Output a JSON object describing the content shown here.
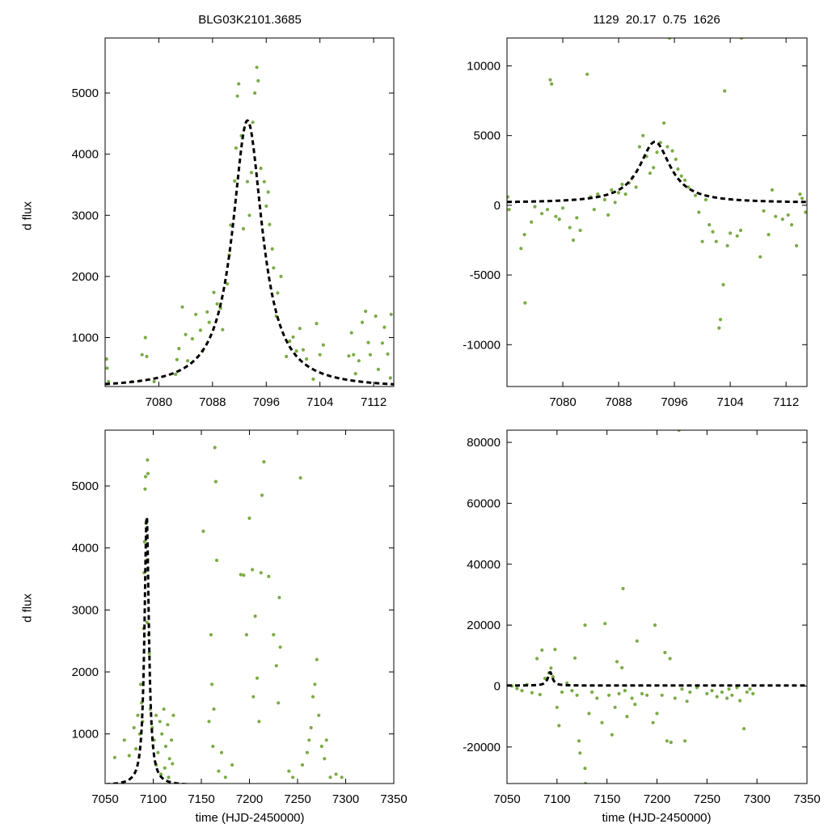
{
  "titles": {
    "left": "BLG03K2101.3685",
    "right": "1129  20.17  0.75  1626"
  },
  "axis_labels": {
    "y": "d flux",
    "x": "time (HJD-2450000)"
  },
  "colors": {
    "points": "#7aab45",
    "model": "#000000",
    "frame": "#000000"
  },
  "chart_data": [
    {
      "id": "top-left",
      "type": "scatter",
      "xlim": [
        7072,
        7115
      ],
      "ylim": [
        200,
        5900
      ],
      "xticks": [
        7080,
        7088,
        7096,
        7104,
        7112
      ],
      "yticks": [
        1000,
        2000,
        3000,
        4000,
        5000
      ],
      "xlabel": "",
      "ylabel": "d flux",
      "model": {
        "name": "model",
        "style": "dashed",
        "t0": 7093.2,
        "peak": 4550,
        "width": 2.7,
        "base": 170
      },
      "points": [
        [
          7072.2,
          650
        ],
        [
          7072.3,
          500
        ],
        [
          7072.5,
          280
        ],
        [
          7076,
          280
        ],
        [
          7077.5,
          720
        ],
        [
          7078,
          1000
        ],
        [
          7078.2,
          690
        ],
        [
          7079.3,
          280
        ],
        [
          7082.5,
          400
        ],
        [
          7082.7,
          640
        ],
        [
          7083,
          820
        ],
        [
          7083.5,
          1500
        ],
        [
          7084,
          1050
        ],
        [
          7084.3,
          620
        ],
        [
          7085,
          980
        ],
        [
          7085.5,
          1380
        ],
        [
          7086.2,
          1120
        ],
        [
          7086.5,
          780
        ],
        [
          7087.2,
          1420
        ],
        [
          7087.5,
          1250
        ],
        [
          7088.2,
          1740
        ],
        [
          7088.7,
          1550
        ],
        [
          7089.2,
          1480
        ],
        [
          7089.5,
          1130
        ],
        [
          7090.2,
          1880
        ],
        [
          7090.5,
          2350
        ],
        [
          7090.7,
          2840
        ],
        [
          7091.3,
          3560
        ],
        [
          7091.5,
          4100
        ],
        [
          7091.7,
          4950
        ],
        [
          7091.9,
          5150
        ],
        [
          7092.3,
          4300
        ],
        [
          7092.6,
          2780
        ],
        [
          7093.2,
          3550
        ],
        [
          7093.5,
          3000
        ],
        [
          7093.8,
          3700
        ],
        [
          7094.0,
          4520
        ],
        [
          7094.3,
          5000
        ],
        [
          7094.6,
          5420
        ],
        [
          7094.8,
          5200
        ],
        [
          7095.2,
          3770
        ],
        [
          7095.7,
          3550
        ],
        [
          7096.0,
          3150
        ],
        [
          7096.3,
          3380
        ],
        [
          7096.5,
          2850
        ],
        [
          7096.9,
          2450
        ],
        [
          7097.1,
          2140
        ],
        [
          7097.5,
          1350
        ],
        [
          7097.7,
          1730
        ],
        [
          7098.2,
          2000
        ],
        [
          7099,
          690
        ],
        [
          7099.5,
          940
        ],
        [
          7100,
          1010
        ],
        [
          7100.5,
          780
        ],
        [
          7101,
          1150
        ],
        [
          7101.5,
          800
        ],
        [
          7102,
          650
        ],
        [
          7103,
          320
        ],
        [
          7103.5,
          1230
        ],
        [
          7104,
          720
        ],
        [
          7104.5,
          880
        ],
        [
          7108.3,
          700
        ],
        [
          7108.7,
          1080
        ],
        [
          7109,
          720
        ],
        [
          7109.3,
          410
        ],
        [
          7109.8,
          620
        ],
        [
          7110.3,
          1250
        ],
        [
          7110.8,
          1430
        ],
        [
          7111.2,
          920
        ],
        [
          7111.5,
          720
        ],
        [
          7112.3,
          1350
        ],
        [
          7112.7,
          480
        ],
        [
          7113.3,
          910
        ],
        [
          7113.6,
          1170
        ],
        [
          7114.1,
          730
        ],
        [
          7114.5,
          340
        ],
        [
          7114.6,
          1380
        ]
      ]
    },
    {
      "id": "top-right",
      "type": "scatter",
      "xlim": [
        7072,
        7115
      ],
      "ylim": [
        -13000,
        12000
      ],
      "xticks": [
        7080,
        7088,
        7096,
        7104,
        7112
      ],
      "yticks": [
        -10000,
        -5000,
        0,
        5000,
        10000
      ],
      "xlabel": "",
      "ylabel": "",
      "model": {
        "name": "model",
        "style": "dashed",
        "t0": 7093.2,
        "peak": 4550,
        "width": 2.7,
        "base": 170
      },
      "points": [
        [
          7072.1,
          600
        ],
        [
          7072.3,
          -300
        ],
        [
          7074,
          -3100
        ],
        [
          7074.5,
          -2100
        ],
        [
          7074.6,
          -7000
        ],
        [
          7075.5,
          -1200
        ],
        [
          7076,
          -100
        ],
        [
          7077,
          -600
        ],
        [
          7077.8,
          -300
        ],
        [
          7078.2,
          9000
        ],
        [
          7078.4,
          8700
        ],
        [
          7079,
          -800
        ],
        [
          7079.5,
          -1000
        ],
        [
          7080,
          -200
        ],
        [
          7081,
          -1600
        ],
        [
          7081.5,
          -2500
        ],
        [
          7082,
          -900
        ],
        [
          7082.5,
          -1800
        ],
        [
          7083.5,
          9400
        ],
        [
          7084,
          600
        ],
        [
          7084.5,
          -300
        ],
        [
          7085,
          800
        ],
        [
          7086,
          400
        ],
        [
          7086.5,
          -700
        ],
        [
          7087,
          1100
        ],
        [
          7087.5,
          200
        ],
        [
          7088,
          900
        ],
        [
          7088.5,
          1500
        ],
        [
          7089,
          800
        ],
        [
          7089.5,
          1600
        ],
        [
          7090,
          2000
        ],
        [
          7090.5,
          1300
        ],
        [
          7091,
          4200
        ],
        [
          7091.5,
          5000
        ],
        [
          7092,
          3500
        ],
        [
          7092.5,
          2300
        ],
        [
          7093,
          2700
        ],
        [
          7093.5,
          3800
        ],
        [
          7094,
          4500
        ],
        [
          7094.5,
          5900
        ],
        [
          7095,
          4200
        ],
        [
          7095.3,
          12000
        ],
        [
          7095.7,
          3900
        ],
        [
          7096.2,
          3300
        ],
        [
          7096.5,
          2600
        ],
        [
          7097,
          2100
        ],
        [
          7097.5,
          1800
        ],
        [
          7098,
          1300
        ],
        [
          7099,
          700
        ],
        [
          7099.5,
          -500
        ],
        [
          7100,
          -2600
        ],
        [
          7100.5,
          400
        ],
        [
          7101,
          -1400
        ],
        [
          7101.5,
          -1900
        ],
        [
          7102,
          -2600
        ],
        [
          7102.4,
          -8800
        ],
        [
          7102.6,
          -8200
        ],
        [
          7103,
          -5700
        ],
        [
          7103.2,
          8200
        ],
        [
          7103.6,
          -2900
        ],
        [
          7104,
          -2000
        ],
        [
          7105,
          -2200
        ],
        [
          7105.5,
          -1800
        ],
        [
          7105.6,
          12000
        ],
        [
          7108.3,
          -3700
        ],
        [
          7108.8,
          -400
        ],
        [
          7109.5,
          -2100
        ],
        [
          7110,
          1100
        ],
        [
          7110.5,
          -800
        ],
        [
          7111.5,
          -1000
        ],
        [
          7112.3,
          -700
        ],
        [
          7112.8,
          -1400
        ],
        [
          7113.5,
          -2900
        ],
        [
          7114,
          800
        ],
        [
          7114.3,
          500
        ],
        [
          7114.8,
          -500
        ]
      ]
    },
    {
      "id": "bottom-left",
      "type": "scatter",
      "xlim": [
        7050,
        7350
      ],
      "ylim": [
        200,
        5900
      ],
      "xticks": [
        7050,
        7100,
        7150,
        7200,
        7250,
        7300,
        7350
      ],
      "yticks": [
        1000,
        2000,
        3000,
        4000,
        5000
      ],
      "xlabel": "time (HJD-2450000)",
      "ylabel": "d flux",
      "model": {
        "name": "model",
        "style": "dashed",
        "t0": 7093.2,
        "peak": 4550,
        "width": 2.7,
        "base": 170
      },
      "points": [
        [
          7060,
          620
        ],
        [
          7070,
          900
        ],
        [
          7075,
          650
        ],
        [
          7080,
          1100
        ],
        [
          7082,
          760
        ],
        [
          7084,
          1300
        ],
        [
          7086,
          1000
        ],
        [
          7087,
          1800
        ],
        [
          7088,
          1500
        ],
        [
          7089,
          1200
        ],
        [
          7090,
          2700
        ],
        [
          7090.5,
          3600
        ],
        [
          7091,
          4100
        ],
        [
          7091.5,
          4950
        ],
        [
          7092,
          5150
        ],
        [
          7092.5,
          4400
        ],
        [
          7093,
          3800
        ],
        [
          7093.5,
          2800
        ],
        [
          7094,
          5420
        ],
        [
          7094.5,
          5200
        ],
        [
          7095,
          2600
        ],
        [
          7096,
          2300
        ],
        [
          7097,
          1400
        ],
        [
          7099,
          1100
        ],
        [
          7101,
          900
        ],
        [
          7103,
          1300
        ],
        [
          7105,
          700
        ],
        [
          7107,
          1200
        ],
        [
          7109,
          1000
        ],
        [
          7111,
          1400
        ],
        [
          7113,
          800
        ],
        [
          7115,
          1150
        ],
        [
          7117,
          600
        ],
        [
          7119,
          900
        ],
        [
          7121,
          1300
        ],
        [
          7103,
          500
        ],
        [
          7108,
          350
        ],
        [
          7112,
          450
        ],
        [
          7116,
          300
        ],
        [
          7120,
          520
        ],
        [
          7152,
          4270
        ],
        [
          7158,
          1200
        ],
        [
          7160,
          2600
        ],
        [
          7161,
          1800
        ],
        [
          7162,
          800
        ],
        [
          7163,
          1400
        ],
        [
          7164,
          5620
        ],
        [
          7165,
          5070
        ],
        [
          7166,
          3800
        ],
        [
          7168,
          400
        ],
        [
          7171,
          700
        ],
        [
          7175,
          300
        ],
        [
          7182,
          500
        ],
        [
          7191,
          3570
        ],
        [
          7194,
          3560
        ],
        [
          7197,
          2600
        ],
        [
          7200,
          4480
        ],
        [
          7203,
          3650
        ],
        [
          7204,
          1600
        ],
        [
          7206,
          2900
        ],
        [
          7208,
          1900
        ],
        [
          7210,
          1200
        ],
        [
          7212,
          3600
        ],
        [
          7213,
          4850
        ],
        [
          7215,
          5390
        ],
        [
          7220,
          3540
        ],
        [
          7225,
          2600
        ],
        [
          7228,
          2100
        ],
        [
          7230,
          1500
        ],
        [
          7231,
          3200
        ],
        [
          7232,
          2400
        ],
        [
          7241,
          400
        ],
        [
          7245,
          300
        ],
        [
          7253,
          5130
        ],
        [
          7255,
          500
        ],
        [
          7260,
          700
        ],
        [
          7262,
          900
        ],
        [
          7264,
          1100
        ],
        [
          7266,
          1600
        ],
        [
          7268,
          1800
        ],
        [
          7270,
          2200
        ],
        [
          7272,
          1300
        ],
        [
          7275,
          800
        ],
        [
          7278,
          600
        ],
        [
          7280,
          900
        ],
        [
          7284,
          300
        ],
        [
          7290,
          350
        ],
        [
          7296,
          300
        ]
      ]
    },
    {
      "id": "bottom-right",
      "type": "scatter",
      "xlim": [
        7050,
        7350
      ],
      "ylim": [
        -32000,
        84000
      ],
      "xticks": [
        7050,
        7100,
        7150,
        7200,
        7250,
        7300,
        7350
      ],
      "yticks": [
        -20000,
        0,
        20000,
        40000,
        60000,
        80000
      ],
      "xlabel": "time (HJD-2450000)",
      "ylabel": "",
      "model": {
        "name": "model",
        "style": "dashed",
        "t0": 7093.2,
        "peak": 4550,
        "width": 2.7,
        "base": 170
      },
      "points": [
        [
          7055,
          0
        ],
        [
          7060,
          -800
        ],
        [
          7065,
          -1500
        ],
        [
          7070,
          500
        ],
        [
          7075,
          -2200
        ],
        [
          7080,
          9000
        ],
        [
          7083,
          -2800
        ],
        [
          7085,
          11800
        ],
        [
          7088,
          2500
        ],
        [
          7092,
          4300
        ],
        [
          7094,
          5900
        ],
        [
          7096,
          3000
        ],
        [
          7098,
          12000
        ],
        [
          7100,
          -7000
        ],
        [
          7102,
          -13000
        ],
        [
          7105,
          -2000
        ],
        [
          7110,
          1000
        ],
        [
          7115,
          -1500
        ],
        [
          7118,
          9200
        ],
        [
          7120,
          -3000
        ],
        [
          7122,
          -18000
        ],
        [
          7123,
          -22000
        ],
        [
          7128,
          -27000
        ],
        [
          7128.5,
          -32000
        ],
        [
          7128,
          20000
        ],
        [
          7132,
          -9000
        ],
        [
          7135,
          -2000
        ],
        [
          7140,
          -4000
        ],
        [
          7145,
          -12000
        ],
        [
          7148,
          20500
        ],
        [
          7152,
          -3000
        ],
        [
          7155,
          -16000
        ],
        [
          7158,
          -7000
        ],
        [
          7160,
          8000
        ],
        [
          7162,
          -2500
        ],
        [
          7165,
          6000
        ],
        [
          7166,
          32000
        ],
        [
          7168,
          -1500
        ],
        [
          7170,
          -10000
        ],
        [
          7175,
          -4000
        ],
        [
          7178,
          -6000
        ],
        [
          7180,
          14800
        ],
        [
          7185,
          -2500
        ],
        [
          7190,
          -3000
        ],
        [
          7196,
          -12000
        ],
        [
          7198,
          20000
        ],
        [
          7200,
          -9000
        ],
        [
          7205,
          -3000
        ],
        [
          7208,
          11000
        ],
        [
          7210,
          -18000
        ],
        [
          7213,
          9000
        ],
        [
          7214,
          -18500
        ],
        [
          7218,
          -4000
        ],
        [
          7222,
          84000
        ],
        [
          7225,
          -1000
        ],
        [
          7228,
          -18000
        ],
        [
          7230,
          -5000
        ],
        [
          7233,
          -2000
        ],
        [
          7240,
          -500
        ],
        [
          7250,
          -2500
        ],
        [
          7255,
          -1500
        ],
        [
          7260,
          -3500
        ],
        [
          7265,
          -2000
        ],
        [
          7270,
          -4000
        ],
        [
          7272,
          -1000
        ],
        [
          7275,
          -3000
        ],
        [
          7280,
          -500
        ],
        [
          7283,
          -4800
        ],
        [
          7287,
          -14000
        ],
        [
          7290,
          -2000
        ],
        [
          7293,
          -1000
        ],
        [
          7296,
          -2500
        ]
      ]
    }
  ]
}
